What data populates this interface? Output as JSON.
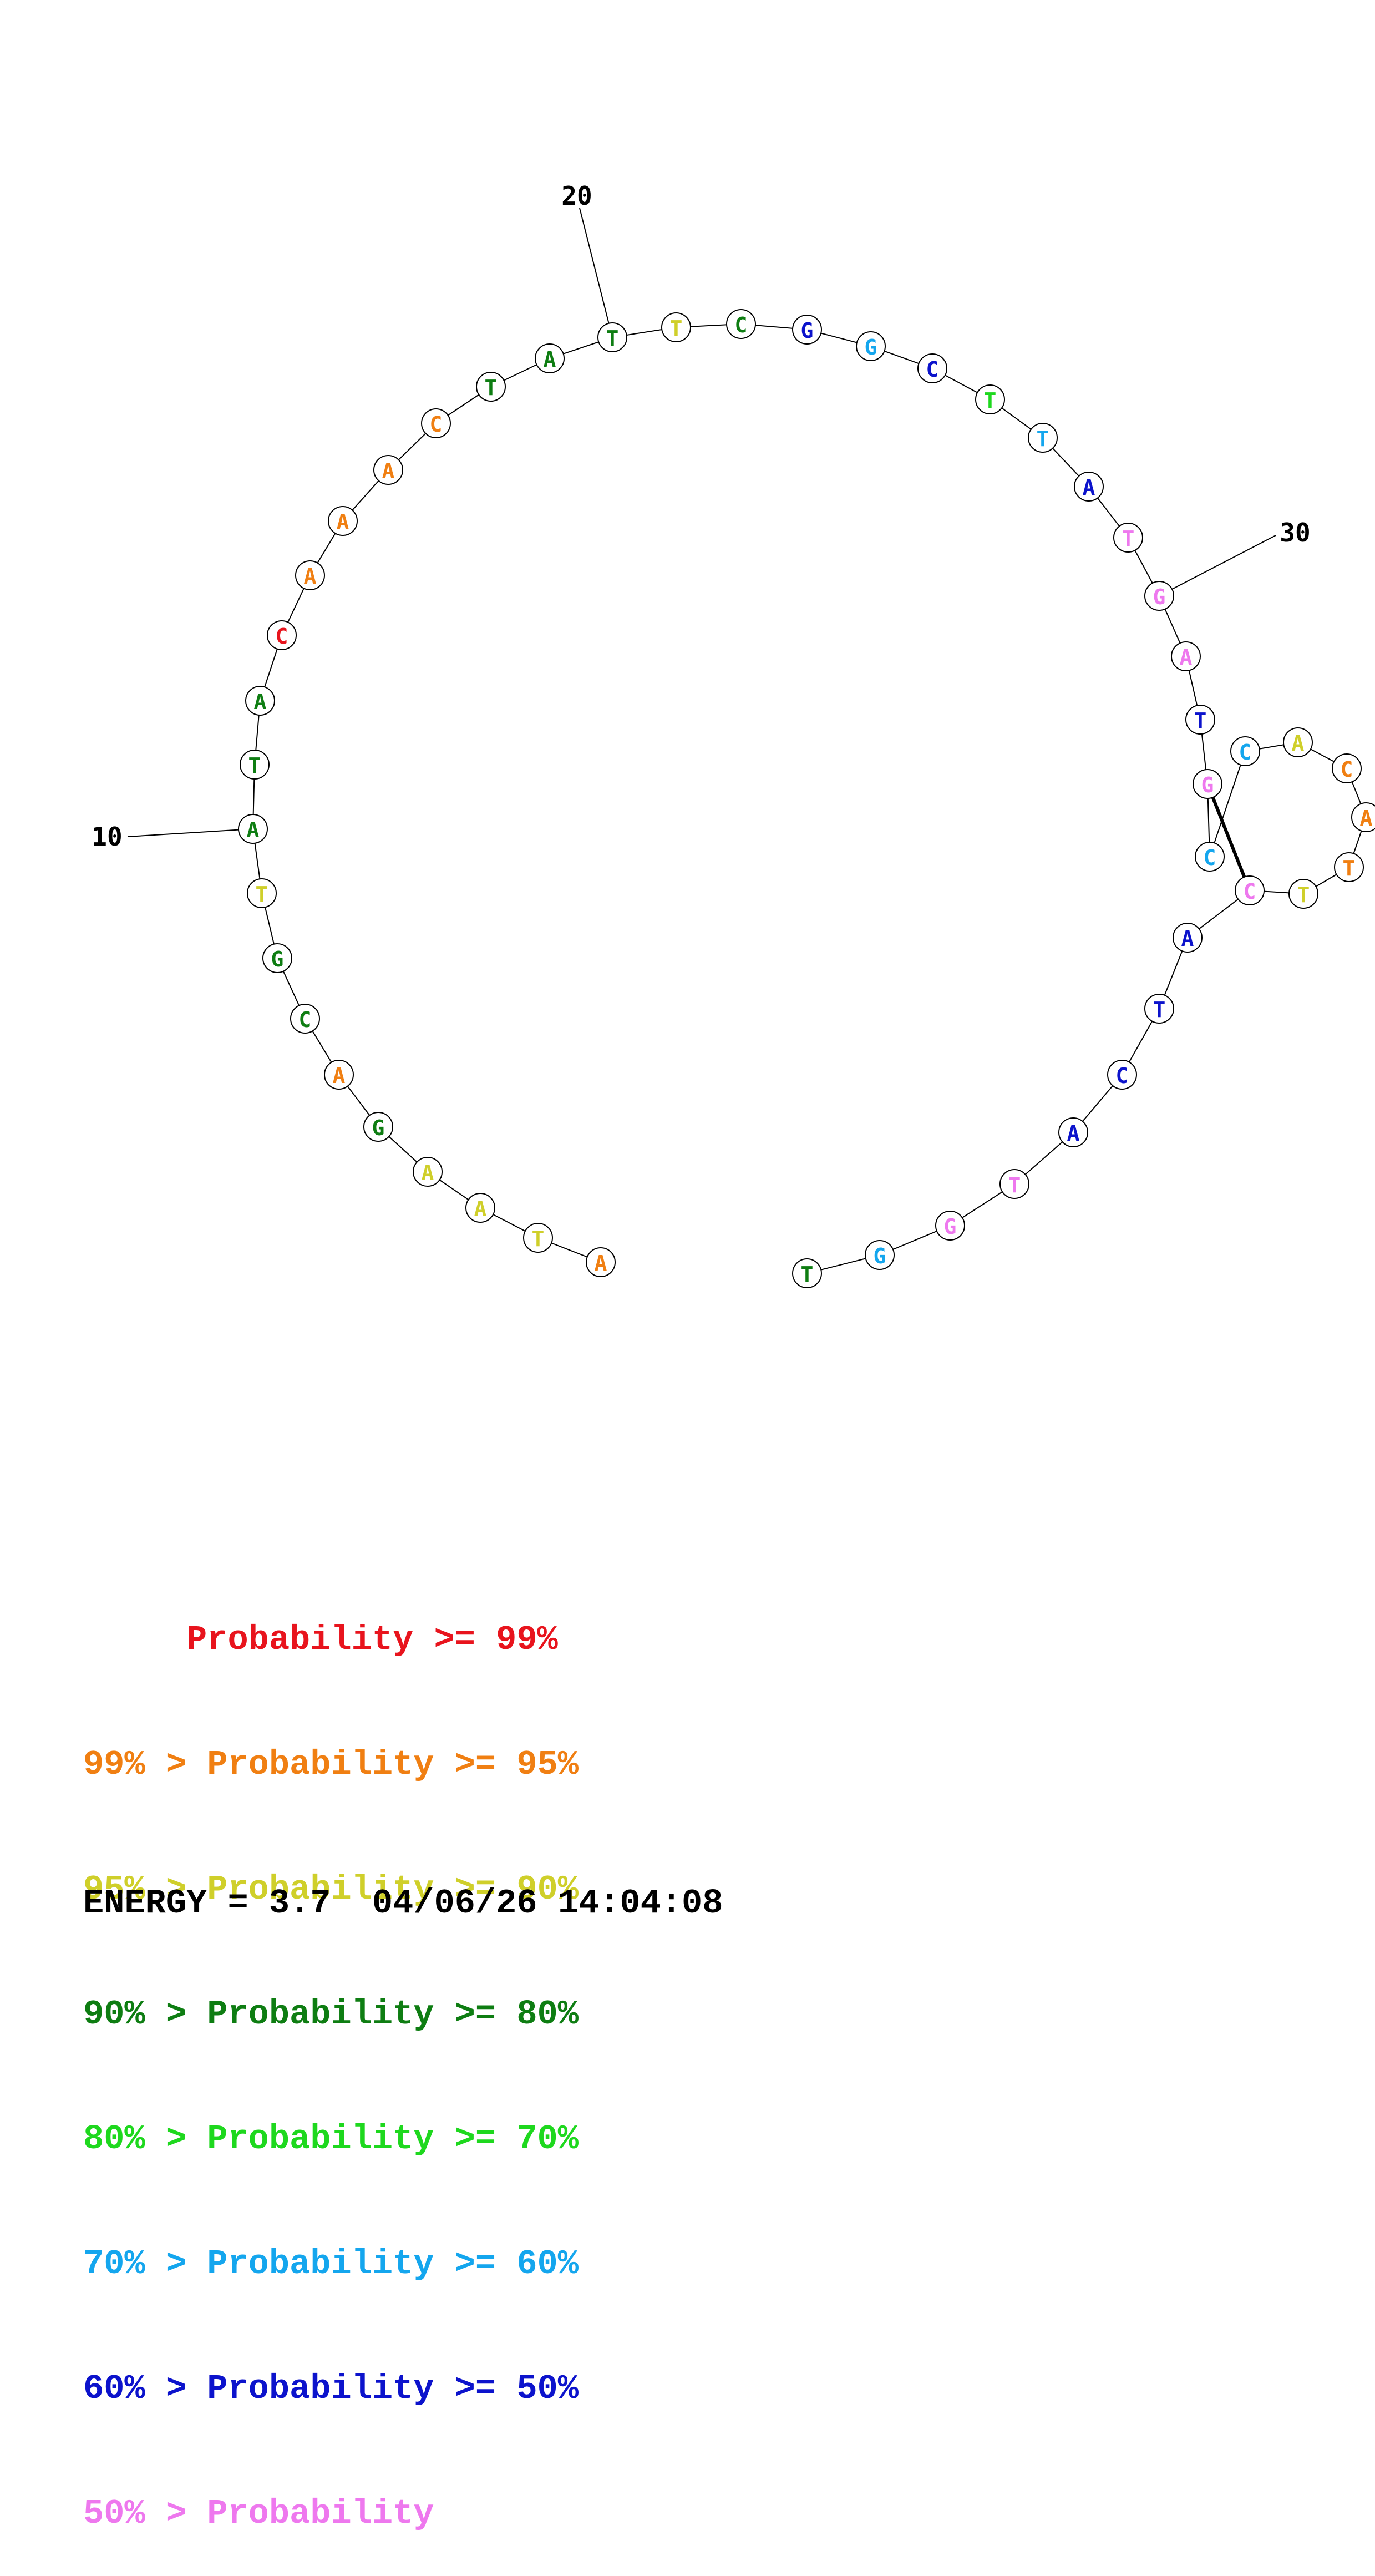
{
  "colors": {
    "p99": "#e8141d",
    "p95": "#f07f12",
    "p90": "#cfcf2a",
    "p80": "#0e7d12",
    "p70": "#1ed81e",
    "p60": "#14a6ee",
    "p50": "#0c13cc",
    "p00": "#ee78ee"
  },
  "sequence": [
    {
      "base": "A",
      "prob": "p95"
    },
    {
      "base": "T",
      "prob": "p90"
    },
    {
      "base": "A",
      "prob": "p90"
    },
    {
      "base": "A",
      "prob": "p90"
    },
    {
      "base": "G",
      "prob": "p80"
    },
    {
      "base": "A",
      "prob": "p95"
    },
    {
      "base": "C",
      "prob": "p80"
    },
    {
      "base": "G",
      "prob": "p80"
    },
    {
      "base": "T",
      "prob": "p90"
    },
    {
      "base": "A",
      "prob": "p80"
    },
    {
      "base": "T",
      "prob": "p80"
    },
    {
      "base": "A",
      "prob": "p80"
    },
    {
      "base": "C",
      "prob": "p99"
    },
    {
      "base": "A",
      "prob": "p95"
    },
    {
      "base": "A",
      "prob": "p95"
    },
    {
      "base": "A",
      "prob": "p95"
    },
    {
      "base": "C",
      "prob": "p95"
    },
    {
      "base": "T",
      "prob": "p80"
    },
    {
      "base": "A",
      "prob": "p80"
    },
    {
      "base": "T",
      "prob": "p80"
    },
    {
      "base": "T",
      "prob": "p90"
    },
    {
      "base": "C",
      "prob": "p80"
    },
    {
      "base": "G",
      "prob": "p50"
    },
    {
      "base": "G",
      "prob": "p60"
    },
    {
      "base": "C",
      "prob": "p50"
    },
    {
      "base": "T",
      "prob": "p70"
    },
    {
      "base": "T",
      "prob": "p60"
    },
    {
      "base": "A",
      "prob": "p50"
    },
    {
      "base": "T",
      "prob": "p00"
    },
    {
      "base": "G",
      "prob": "p00"
    },
    {
      "base": "A",
      "prob": "p00"
    },
    {
      "base": "T",
      "prob": "p50"
    },
    {
      "base": "G",
      "prob": "p00"
    },
    {
      "base": "C",
      "prob": "p60"
    },
    {
      "base": "C",
      "prob": "p60"
    },
    {
      "base": "A",
      "prob": "p90"
    },
    {
      "base": "C",
      "prob": "p95"
    },
    {
      "base": "A",
      "prob": "p95"
    },
    {
      "base": "T",
      "prob": "p95"
    },
    {
      "base": "T",
      "prob": "p90"
    },
    {
      "base": "C",
      "prob": "p00"
    },
    {
      "base": "A",
      "prob": "p50"
    },
    {
      "base": "T",
      "prob": "p50"
    },
    {
      "base": "C",
      "prob": "p50"
    },
    {
      "base": "A",
      "prob": "p50"
    },
    {
      "base": "T",
      "prob": "p00"
    },
    {
      "base": "G",
      "prob": "p00"
    },
    {
      "base": "G",
      "prob": "p60"
    },
    {
      "base": "T",
      "prob": "p80"
    }
  ],
  "pairs": [
    [
      33,
      41
    ]
  ],
  "position_labels": [
    {
      "index": 10,
      "text": "10"
    },
    {
      "index": 20,
      "text": "20"
    },
    {
      "index": 30,
      "text": "30"
    }
  ],
  "legend": [
    {
      "key": "p99",
      "text": "     Probability >= 99%"
    },
    {
      "key": "p95",
      "text": "99% > Probability >= 95%"
    },
    {
      "key": "p90",
      "text": "95% > Probability >= 90%"
    },
    {
      "key": "p80",
      "text": "90% > Probability >= 80%"
    },
    {
      "key": "p70",
      "text": "80% > Probability >= 70%"
    },
    {
      "key": "p60",
      "text": "70% > Probability >= 60%"
    },
    {
      "key": "p50",
      "text": "60% > Probability >= 50%"
    },
    {
      "key": "p00",
      "text": "50% > Probability"
    }
  ],
  "footer": {
    "energy": "ENERGY = 3.7",
    "timestamp": "04/06/26 14:04:08"
  }
}
